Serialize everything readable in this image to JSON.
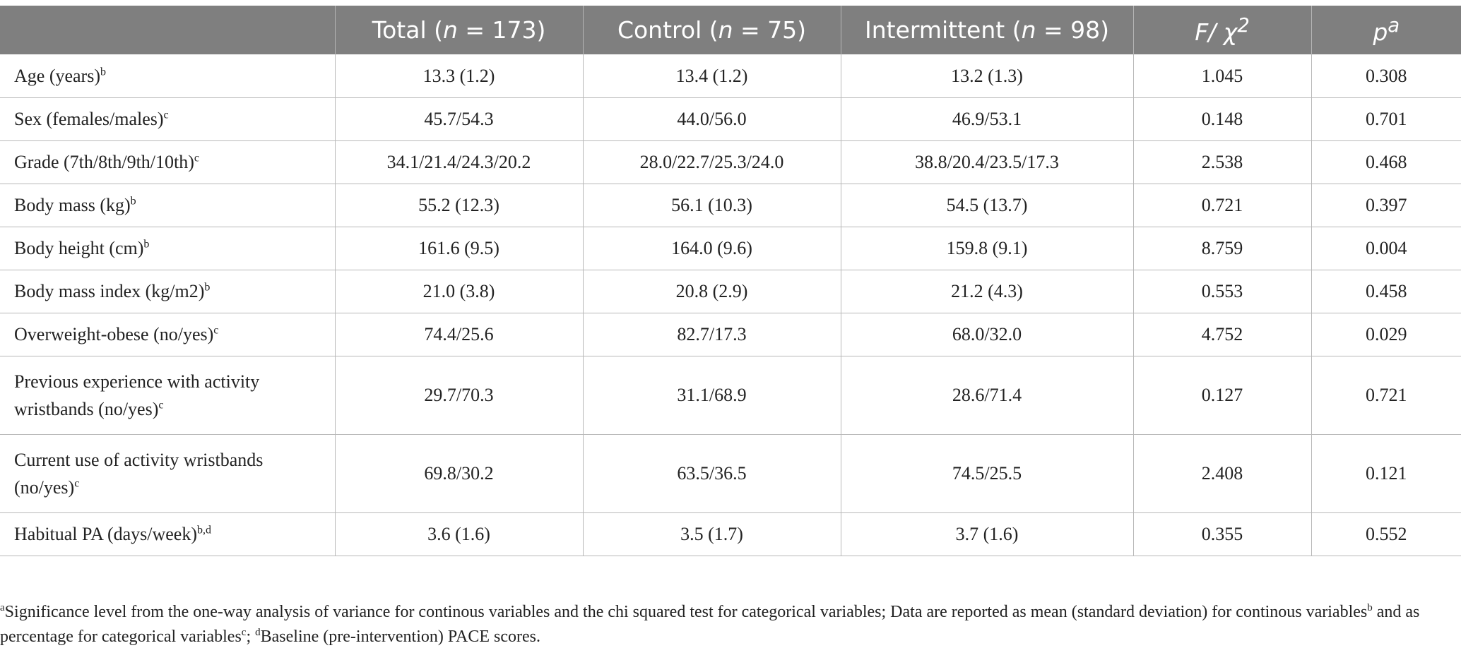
{
  "table": {
    "headers": [
      {
        "pre": "",
        "italic": "",
        "post": "",
        "sup": ""
      },
      {
        "pre": "Total (",
        "italic": "n",
        "post": " = 173)",
        "sup": ""
      },
      {
        "pre": "Control (",
        "italic": "n",
        "post": " = 75)",
        "sup": ""
      },
      {
        "pre": "Intermittent (",
        "italic": "n",
        "post": " = 98)",
        "sup": ""
      },
      {
        "pre": "",
        "italic": "F/ χ",
        "post": "",
        "sup": "2"
      },
      {
        "pre": "",
        "italic": "p",
        "post": "",
        "sup": "a"
      }
    ],
    "rows": [
      {
        "label": "Age (years)",
        "sup": "b",
        "values": [
          "13.3 (1.2)",
          "13.4 (1.2)",
          "13.2 (1.3)",
          "1.045",
          "0.308"
        ]
      },
      {
        "label": "Sex (females/males)",
        "sup": "c",
        "values": [
          "45.7/54.3",
          "44.0/56.0",
          "46.9/53.1",
          "0.148",
          "0.701"
        ]
      },
      {
        "label": "Grade (7th/8th/9th/10th)",
        "sup": "c",
        "values": [
          "34.1/21.4/24.3/20.2",
          "28.0/22.7/25.3/24.0",
          "38.8/20.4/23.5/17.3",
          "2.538",
          "0.468"
        ]
      },
      {
        "label": "Body mass (kg)",
        "sup": "b",
        "values": [
          "55.2 (12.3)",
          "56.1 (10.3)",
          "54.5 (13.7)",
          "0.721",
          "0.397"
        ]
      },
      {
        "label": "Body height (cm)",
        "sup": "b",
        "values": [
          "161.6 (9.5)",
          "164.0 (9.6)",
          "159.8 (9.1)",
          "8.759",
          "0.004"
        ]
      },
      {
        "label": "Body mass index (kg/m2)",
        "sup": "b",
        "values": [
          "21.0 (3.8)",
          "20.8 (2.9)",
          "21.2 (4.3)",
          "0.553",
          "0.458"
        ]
      },
      {
        "label": "Overweight-obese (no/yes)",
        "sup": "c",
        "values": [
          "74.4/25.6",
          "82.7/17.3",
          "68.0/32.0",
          "4.752",
          "0.029"
        ]
      },
      {
        "label": "Previous experience with activity wristbands (no/yes)",
        "sup": "c",
        "values": [
          "29.7/70.3",
          "31.1/68.9",
          "28.6/71.4",
          "0.127",
          "0.721"
        ]
      },
      {
        "label": "Current use of activity wristbands (no/yes)",
        "sup": "c",
        "values": [
          "69.8/30.2",
          "63.5/36.5",
          "74.5/25.5",
          "2.408",
          "0.121"
        ]
      },
      {
        "label": "Habitual PA (days/week)",
        "sup": "b,d",
        "values": [
          "3.6 (1.6)",
          "3.5 (1.7)",
          "3.7 (1.6)",
          "0.355",
          "0.552"
        ]
      }
    ]
  },
  "footnote": {
    "sup_a": "a",
    "text_a": "Significance level from the one-way analysis of variance for continous variables and the chi squared test for categorical variables; Data are reported as mean (standard deviation) for continous variables",
    "sup_b": "b",
    "text_b": " and as percentage for categorical variables",
    "sup_c": "c",
    "text_c": "; ",
    "sup_d": "d",
    "text_d": "Baseline (pre-intervention) PACE scores."
  }
}
